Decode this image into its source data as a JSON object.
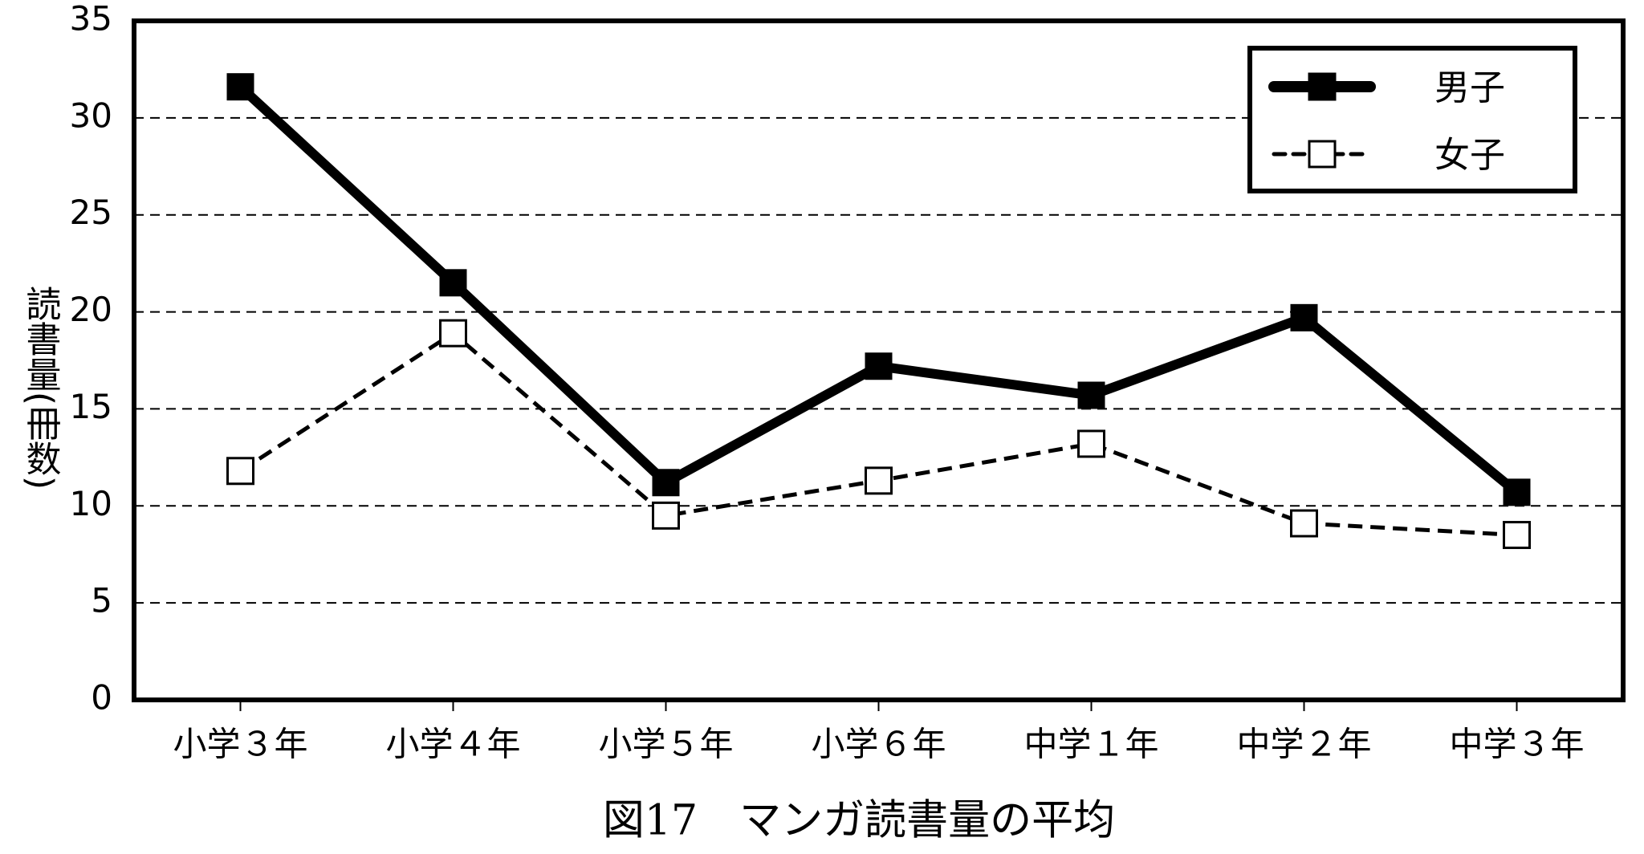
{
  "chart_data": {
    "type": "line",
    "title": "図17　マンガ読書量の平均",
    "y_label": "読書量(冊数)",
    "categories": [
      "小学３年",
      "小学４年",
      "小学５年",
      "小学６年",
      "中学１年",
      "中学２年",
      "中学３年"
    ],
    "series": [
      {
        "name": "男子",
        "color": "#000000",
        "marker": "filled-square",
        "dash": "solid",
        "values": [
          31.6,
          21.5,
          11.2,
          17.2,
          15.7,
          19.7,
          10.7
        ]
      },
      {
        "name": "女子",
        "color": "#000000",
        "marker": "open-square",
        "dash": "dashed",
        "values": [
          11.8,
          18.9,
          9.5,
          11.3,
          13.2,
          9.1,
          8.5
        ]
      }
    ],
    "ylim": [
      0,
      35
    ],
    "yticks": [
      0,
      5,
      10,
      15,
      20,
      25,
      30,
      35
    ],
    "grid": true,
    "legend": "top-right"
  }
}
